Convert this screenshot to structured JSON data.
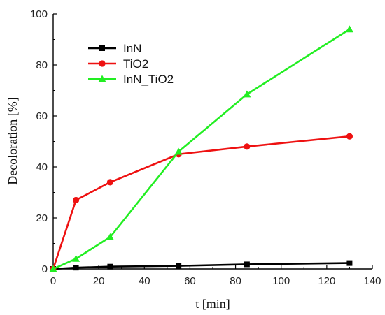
{
  "chart_data": {
    "type": "line",
    "title": "",
    "xlabel": "t [min]",
    "ylabel": "Decoloration  [%]",
    "xlim": [
      0,
      140
    ],
    "ylim": [
      0,
      100
    ],
    "xticks": [
      0,
      20,
      40,
      60,
      80,
      100,
      120,
      140
    ],
    "yticks": [
      0,
      20,
      40,
      60,
      80,
      100
    ],
    "grid": false,
    "legend_position": "top-left",
    "x": [
      0,
      10,
      25,
      55,
      85,
      130
    ],
    "series": [
      {
        "name": "InN",
        "color": "#000000",
        "marker": "square",
        "values": [
          0,
          0.5,
          0.9,
          1.2,
          1.8,
          2.3
        ]
      },
      {
        "name": "TiO2",
        "color": "#ee1111",
        "marker": "circle",
        "values": [
          0,
          27,
          34,
          45,
          48,
          52
        ]
      },
      {
        "name": "InN_TiO2",
        "color": "#22ee22",
        "marker": "triangle",
        "values": [
          0,
          4,
          12.5,
          46,
          68.5,
          94
        ]
      }
    ]
  }
}
